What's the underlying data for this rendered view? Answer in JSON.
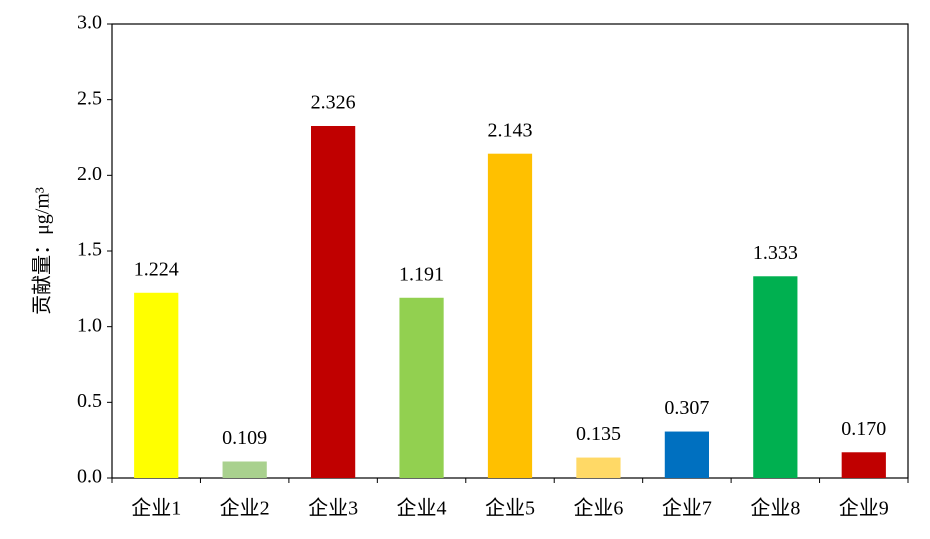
{
  "chart_data": {
    "type": "bar",
    "y_label": "贡献量：μg/m³",
    "categories": [
      "企业1",
      "企业2",
      "企业3",
      "企业4",
      "企业5",
      "企业6",
      "企业7",
      "企业8",
      "企业9"
    ],
    "values": [
      1.224,
      0.109,
      2.326,
      1.191,
      2.143,
      0.135,
      0.307,
      1.333,
      0.17
    ],
    "value_labels": [
      "1.224",
      "0.109",
      "2.326",
      "1.191",
      "2.143",
      "0.135",
      "0.307",
      "1.333",
      "0.170"
    ],
    "colors": [
      "#ffff00",
      "#a9d18e",
      "#c00000",
      "#92d050",
      "#ffc000",
      "#ffd966",
      "#0070c0",
      "#00b050",
      "#c00000"
    ],
    "ylim": [
      0,
      3
    ],
    "yticks": [
      {
        "value": 0,
        "label": "0.0"
      },
      0.5,
      {
        "value": 1,
        "label": "1.0"
      },
      1.5,
      {
        "value": 2,
        "label": "2.0"
      },
      2.5,
      {
        "value": 3,
        "label": "3.0"
      }
    ]
  }
}
